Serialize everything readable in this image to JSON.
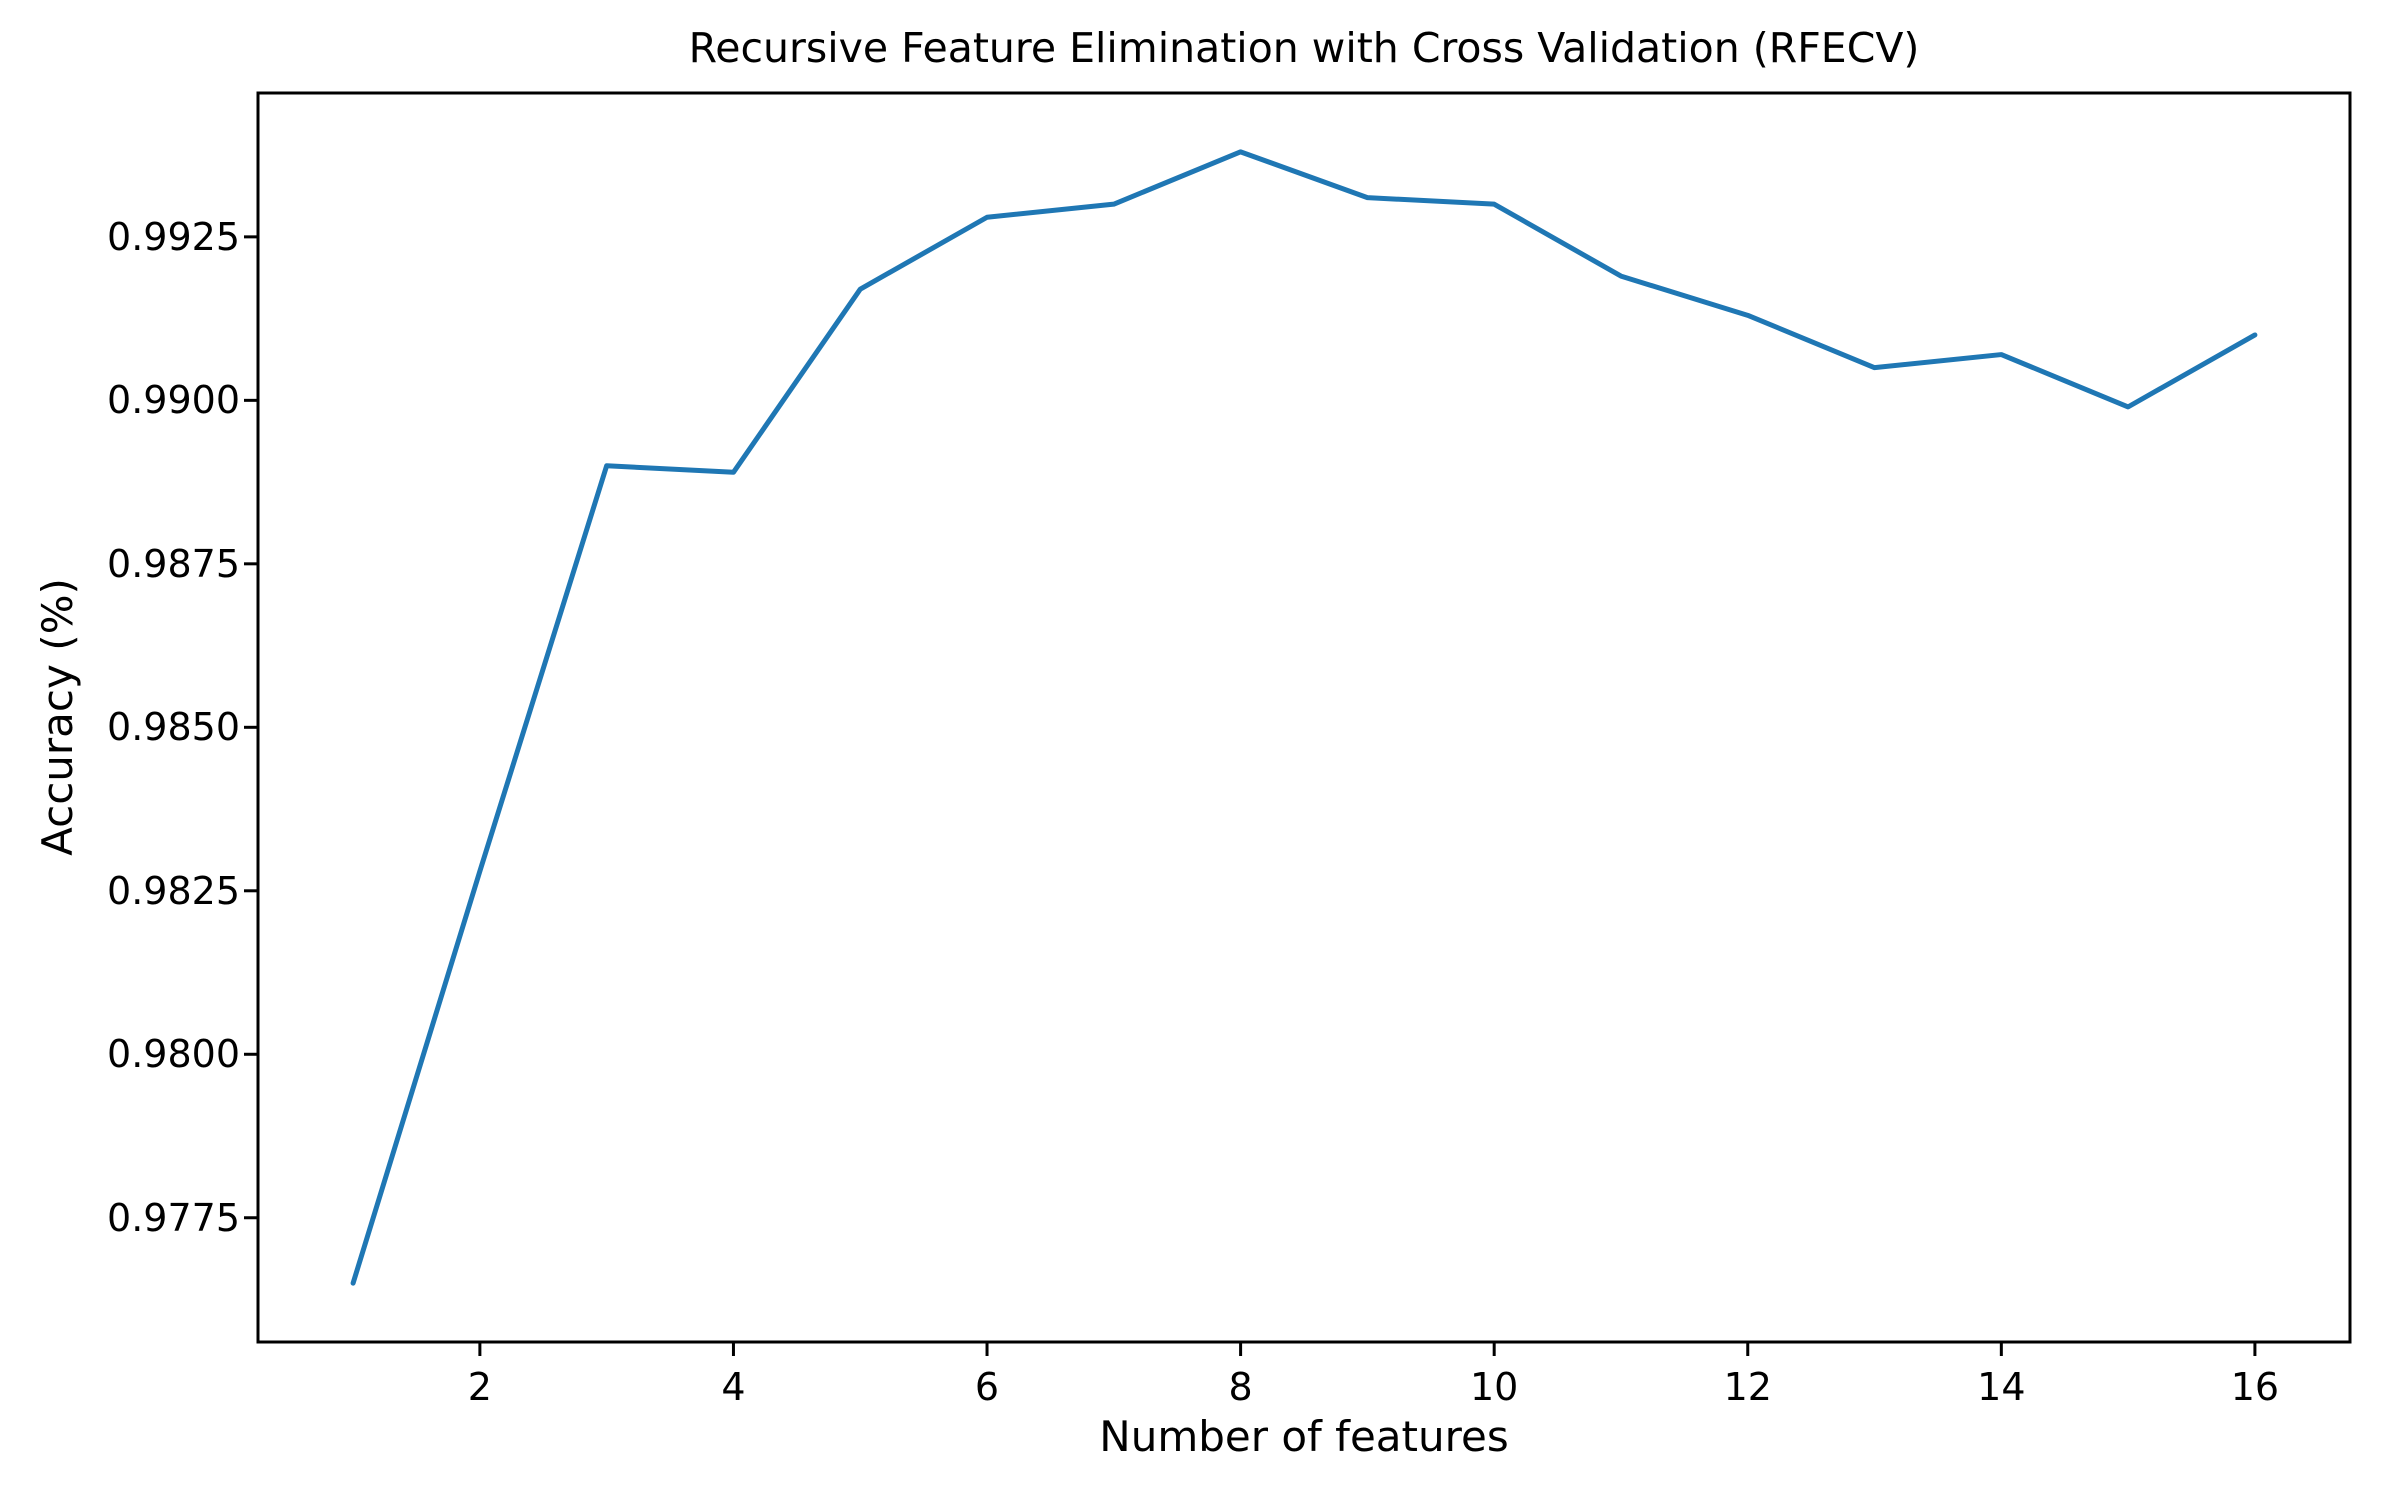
{
  "chart_data": {
    "type": "line",
    "title": "Recursive Feature Elimination with Cross Validation (RFECV)",
    "xlabel": "Number of features",
    "ylabel": "Accuracy (%)",
    "x": [
      1,
      2,
      3,
      4,
      5,
      6,
      7,
      8,
      9,
      10,
      11,
      12,
      13,
      14,
      15,
      16
    ],
    "y": [
      0.9765,
      0.9828,
      0.989,
      0.9889,
      0.9917,
      0.9928,
      0.993,
      0.9938,
      0.9931,
      0.993,
      0.9919,
      0.9913,
      0.9905,
      0.9907,
      0.9899,
      0.991
    ],
    "x_tick_labels": [
      "2",
      "4",
      "6",
      "8",
      "10",
      "12",
      "14",
      "16"
    ],
    "y_tick_labels": [
      "0.9925",
      "0.9900",
      "0.9875",
      "0.9850",
      "0.9825",
      "0.9800",
      "0.9775"
    ],
    "xlim": [
      0.25,
      16.75
    ],
    "ylim": [
      0.9756,
      0.9947
    ],
    "grid": false,
    "legend_position": "none",
    "line_color": "#1f77b4",
    "axis_color": "#000000",
    "background_color": "#ffffff"
  }
}
